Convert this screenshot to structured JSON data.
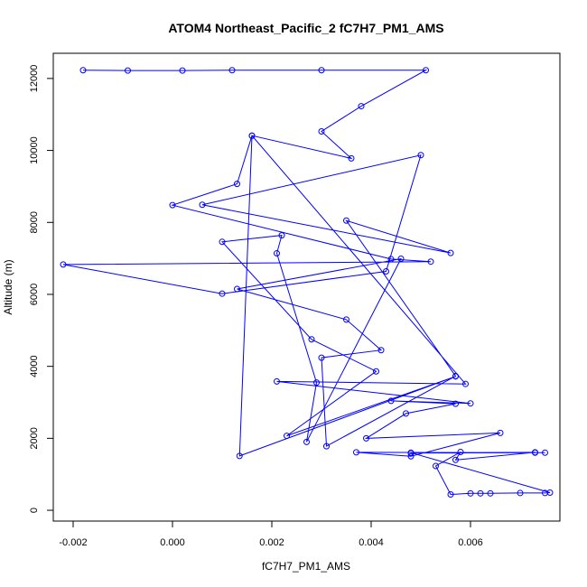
{
  "chart_data": {
    "type": "line",
    "title": "ATOM4 Northeast_Pacific_2 fC7H7_PM1_AMS",
    "xlabel": "fC7H7_PM1_AMS",
    "ylabel": "Altitude (m)",
    "xlim": [
      -0.0024,
      0.0078
    ],
    "ylim": [
      -300,
      12700
    ],
    "xticks": [
      -0.002,
      0.0,
      0.002,
      0.004,
      0.006
    ],
    "xtick_labels": [
      "-0.002",
      "0.000",
      "0.002",
      "0.004",
      "0.006"
    ],
    "yticks": [
      0,
      2000,
      4000,
      6000,
      8000,
      10000,
      12000
    ],
    "ytick_labels": [
      "0",
      "2000",
      "4000",
      "6000",
      "8000",
      "10000",
      "12000"
    ],
    "grid": false,
    "series": [
      {
        "color": "#0000ff",
        "marker": "open-circle",
        "points": [
          [
            -0.0018,
            12230
          ],
          [
            -0.0009,
            12220
          ],
          [
            0.0002,
            12220
          ],
          [
            0.0012,
            12230
          ],
          [
            0.003,
            12230
          ],
          [
            0.0051,
            12230
          ],
          [
            0.0038,
            11230
          ],
          [
            0.003,
            10530
          ],
          [
            0.0036,
            9780
          ],
          [
            0.0016,
            10410
          ],
          [
            0.0013,
            9070
          ],
          [
            0.0,
            8480
          ],
          [
            0.0044,
            6980
          ],
          [
            0.0052,
            6910
          ],
          [
            -0.0022,
            6830
          ],
          [
            0.001,
            6020
          ],
          [
            0.0043,
            6640
          ],
          [
            0.005,
            9870
          ],
          [
            0.0006,
            8490
          ],
          [
            0.0056,
            7150
          ],
          [
            0.0035,
            8050
          ],
          [
            0.0057,
            3730
          ],
          [
            0.0031,
            1780
          ],
          [
            0.003,
            4240
          ],
          [
            0.0042,
            4450
          ],
          [
            0.0035,
            5300
          ],
          [
            0.0013,
            6150
          ],
          [
            0.0046,
            6990
          ],
          [
            0.0027,
            1900
          ],
          [
            0.0029,
            3550
          ],
          [
            0.0021,
            7140
          ],
          [
            0.0022,
            7640
          ],
          [
            0.001,
            7460
          ],
          [
            0.0028,
            4750
          ],
          [
            0.0041,
            3860
          ],
          [
            0.0023,
            2070
          ],
          [
            0.0057,
            3720
          ],
          [
            0.00135,
            1510
          ],
          [
            0.0016,
            10410
          ],
          [
            0.0059,
            3510
          ],
          [
            0.0021,
            3580
          ],
          [
            0.006,
            2970
          ],
          [
            0.0044,
            3040
          ],
          [
            0.0057,
            2960
          ],
          [
            0.0047,
            2690
          ],
          [
            0.0039,
            2000
          ],
          [
            0.0066,
            2150
          ],
          [
            0.0048,
            1500
          ],
          [
            0.0037,
            1610
          ],
          [
            0.0073,
            1600
          ],
          [
            0.0048,
            1590
          ],
          [
            0.0073,
            1610
          ],
          [
            0.0057,
            1400
          ],
          [
            0.0058,
            1620
          ],
          [
            0.0053,
            1230
          ],
          [
            0.0056,
            440
          ],
          [
            0.006,
            470
          ],
          [
            0.0062,
            470
          ],
          [
            0.0064,
            470
          ],
          [
            0.007,
            480
          ],
          [
            0.0075,
            480
          ],
          [
            0.0076,
            490
          ],
          [
            0.0048,
            1600
          ],
          [
            0.0075,
            1600
          ]
        ]
      }
    ]
  }
}
